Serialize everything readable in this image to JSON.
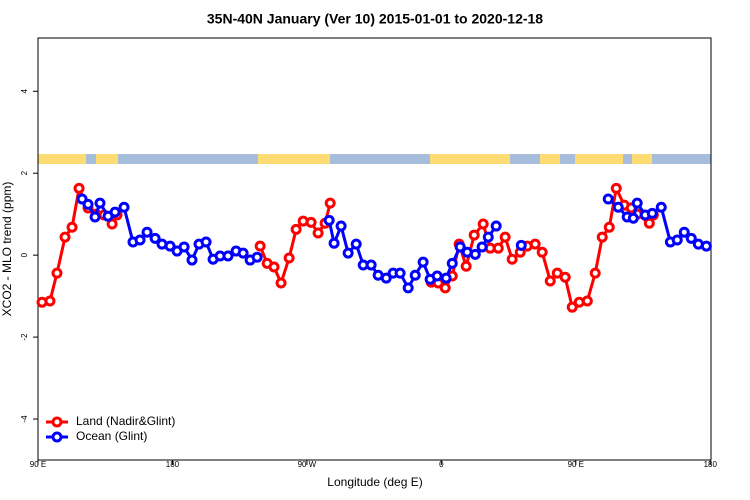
{
  "chart_data": {
    "type": "line",
    "title": "35N-40N January (Ver 10)   2015-01-01 to 2020-12-18",
    "xlabel": "Longitude (deg E)",
    "ylabel": "XCO2 - MLO trend (ppm)",
    "xlim": [
      90,
      540.5
    ],
    "ylim": [
      -5,
      5.3
    ],
    "xticks": [
      {
        "value": 90,
        "label": "90 E"
      },
      180,
      {
        "value": 270,
        "label": "90 W"
      },
      {
        "value": 360,
        "label": "0"
      },
      {
        "value": 450,
        "label": "90 E"
      },
      {
        "value": 540,
        "label": "180"
      }
    ],
    "yticks": [
      -4,
      -2,
      0,
      2,
      4
    ],
    "legend": "bottom-left",
    "series": [
      {
        "name": "Land (Nadir&Glint)",
        "color": "#ff0000",
        "x": [
          92.7,
          98,
          102.7,
          108.1,
          112.8,
          117.5,
          123.5,
          128.8,
          134.2,
          139.6,
          142.9,
          null,
          238.7,
          243.4,
          248,
          252.7,
          258.1,
          262.8,
          267.5,
          272.8,
          277.5,
          282.2,
          285.6,
          null,
          353.2,
          357.9,
          362.6,
          367.3,
          371.9,
          376.6,
          382,
          388,
          392.7,
          398.1,
          402.7,
          407.4,
          412.8,
          417.5,
          422.8,
          427.5,
          432.9,
          437.6,
          442.9,
          447.6,
          452.3,
          457.7,
          463,
          467.7,
          472.4,
          477.1,
          482.4,
          487.1,
          491.1,
          499.2,
          501.9
        ],
        "values": [
          -1.15,
          -1.12,
          -0.44,
          0.44,
          0.68,
          1.63,
          1.15,
          1.0,
          0.98,
          0.76,
          0.98,
          null,
          0.22,
          -0.2,
          -0.29,
          -0.68,
          -0.07,
          0.63,
          0.83,
          0.8,
          0.54,
          0.78,
          1.27,
          null,
          -0.66,
          -0.68,
          -0.8,
          -0.51,
          0.27,
          -0.27,
          0.49,
          0.76,
          0.17,
          0.17,
          0.44,
          -0.1,
          0.07,
          0.22,
          0.27,
          0.07,
          -0.63,
          -0.44,
          -0.54,
          -1.27,
          -1.15,
          -1.12,
          -0.44,
          0.44,
          0.68,
          1.63,
          1.22,
          1.15,
          1.0,
          0.78,
          0.98
        ]
      },
      {
        "name": "Ocean (Glint)",
        "color": "#0000ff",
        "x": [
          119.5,
          123.5,
          128.2,
          131.5,
          136.9,
          141.6,
          147.6,
          153.6,
          158.3,
          163,
          168.4,
          173,
          178.4,
          183.1,
          187.8,
          193.1,
          197.8,
          202.5,
          207.2,
          211.9,
          217.2,
          222.6,
          227.3,
          232,
          236.7,
          null,
          284.9,
          288.2,
          292.9,
          297.6,
          303,
          307.7,
          313,
          317.7,
          323.1,
          327.7,
          332.4,
          337.8,
          342.5,
          347.8,
          352.5,
          357.2,
          363.2,
          367.3,
          372.6,
          377.3,
          382.7,
          387.3,
          391.4,
          396.7,
          null,
          413.5,
          null,
          471.7,
          478.4,
          484.4,
          488.5,
          491.1,
          496.5,
          501.2,
          507.2,
          513.3,
          517.9,
          522.6,
          527.3,
          532,
          537.4
        ],
        "values": [
          1.37,
          1.24,
          0.93,
          1.27,
          0.95,
          1.05,
          1.17,
          0.32,
          0.37,
          0.56,
          0.41,
          0.27,
          0.22,
          0.1,
          0.2,
          -0.12,
          0.27,
          0.32,
          -0.1,
          -0.02,
          -0.02,
          0.1,
          0.05,
          -0.12,
          -0.05,
          null,
          0.85,
          0.29,
          0.71,
          0.05,
          0.27,
          -0.24,
          -0.24,
          -0.49,
          -0.56,
          -0.44,
          -0.44,
          -0.8,
          -0.49,
          -0.17,
          -0.59,
          -0.51,
          -0.56,
          -0.2,
          0.2,
          0.07,
          0.02,
          0.2,
          0.44,
          0.71,
          null,
          0.24,
          null,
          1.37,
          1.17,
          0.93,
          0.9,
          1.27,
          0.98,
          1.02,
          1.17,
          0.32,
          0.37,
          0.56,
          0.41,
          0.27,
          0.22
        ]
      }
    ]
  }
}
